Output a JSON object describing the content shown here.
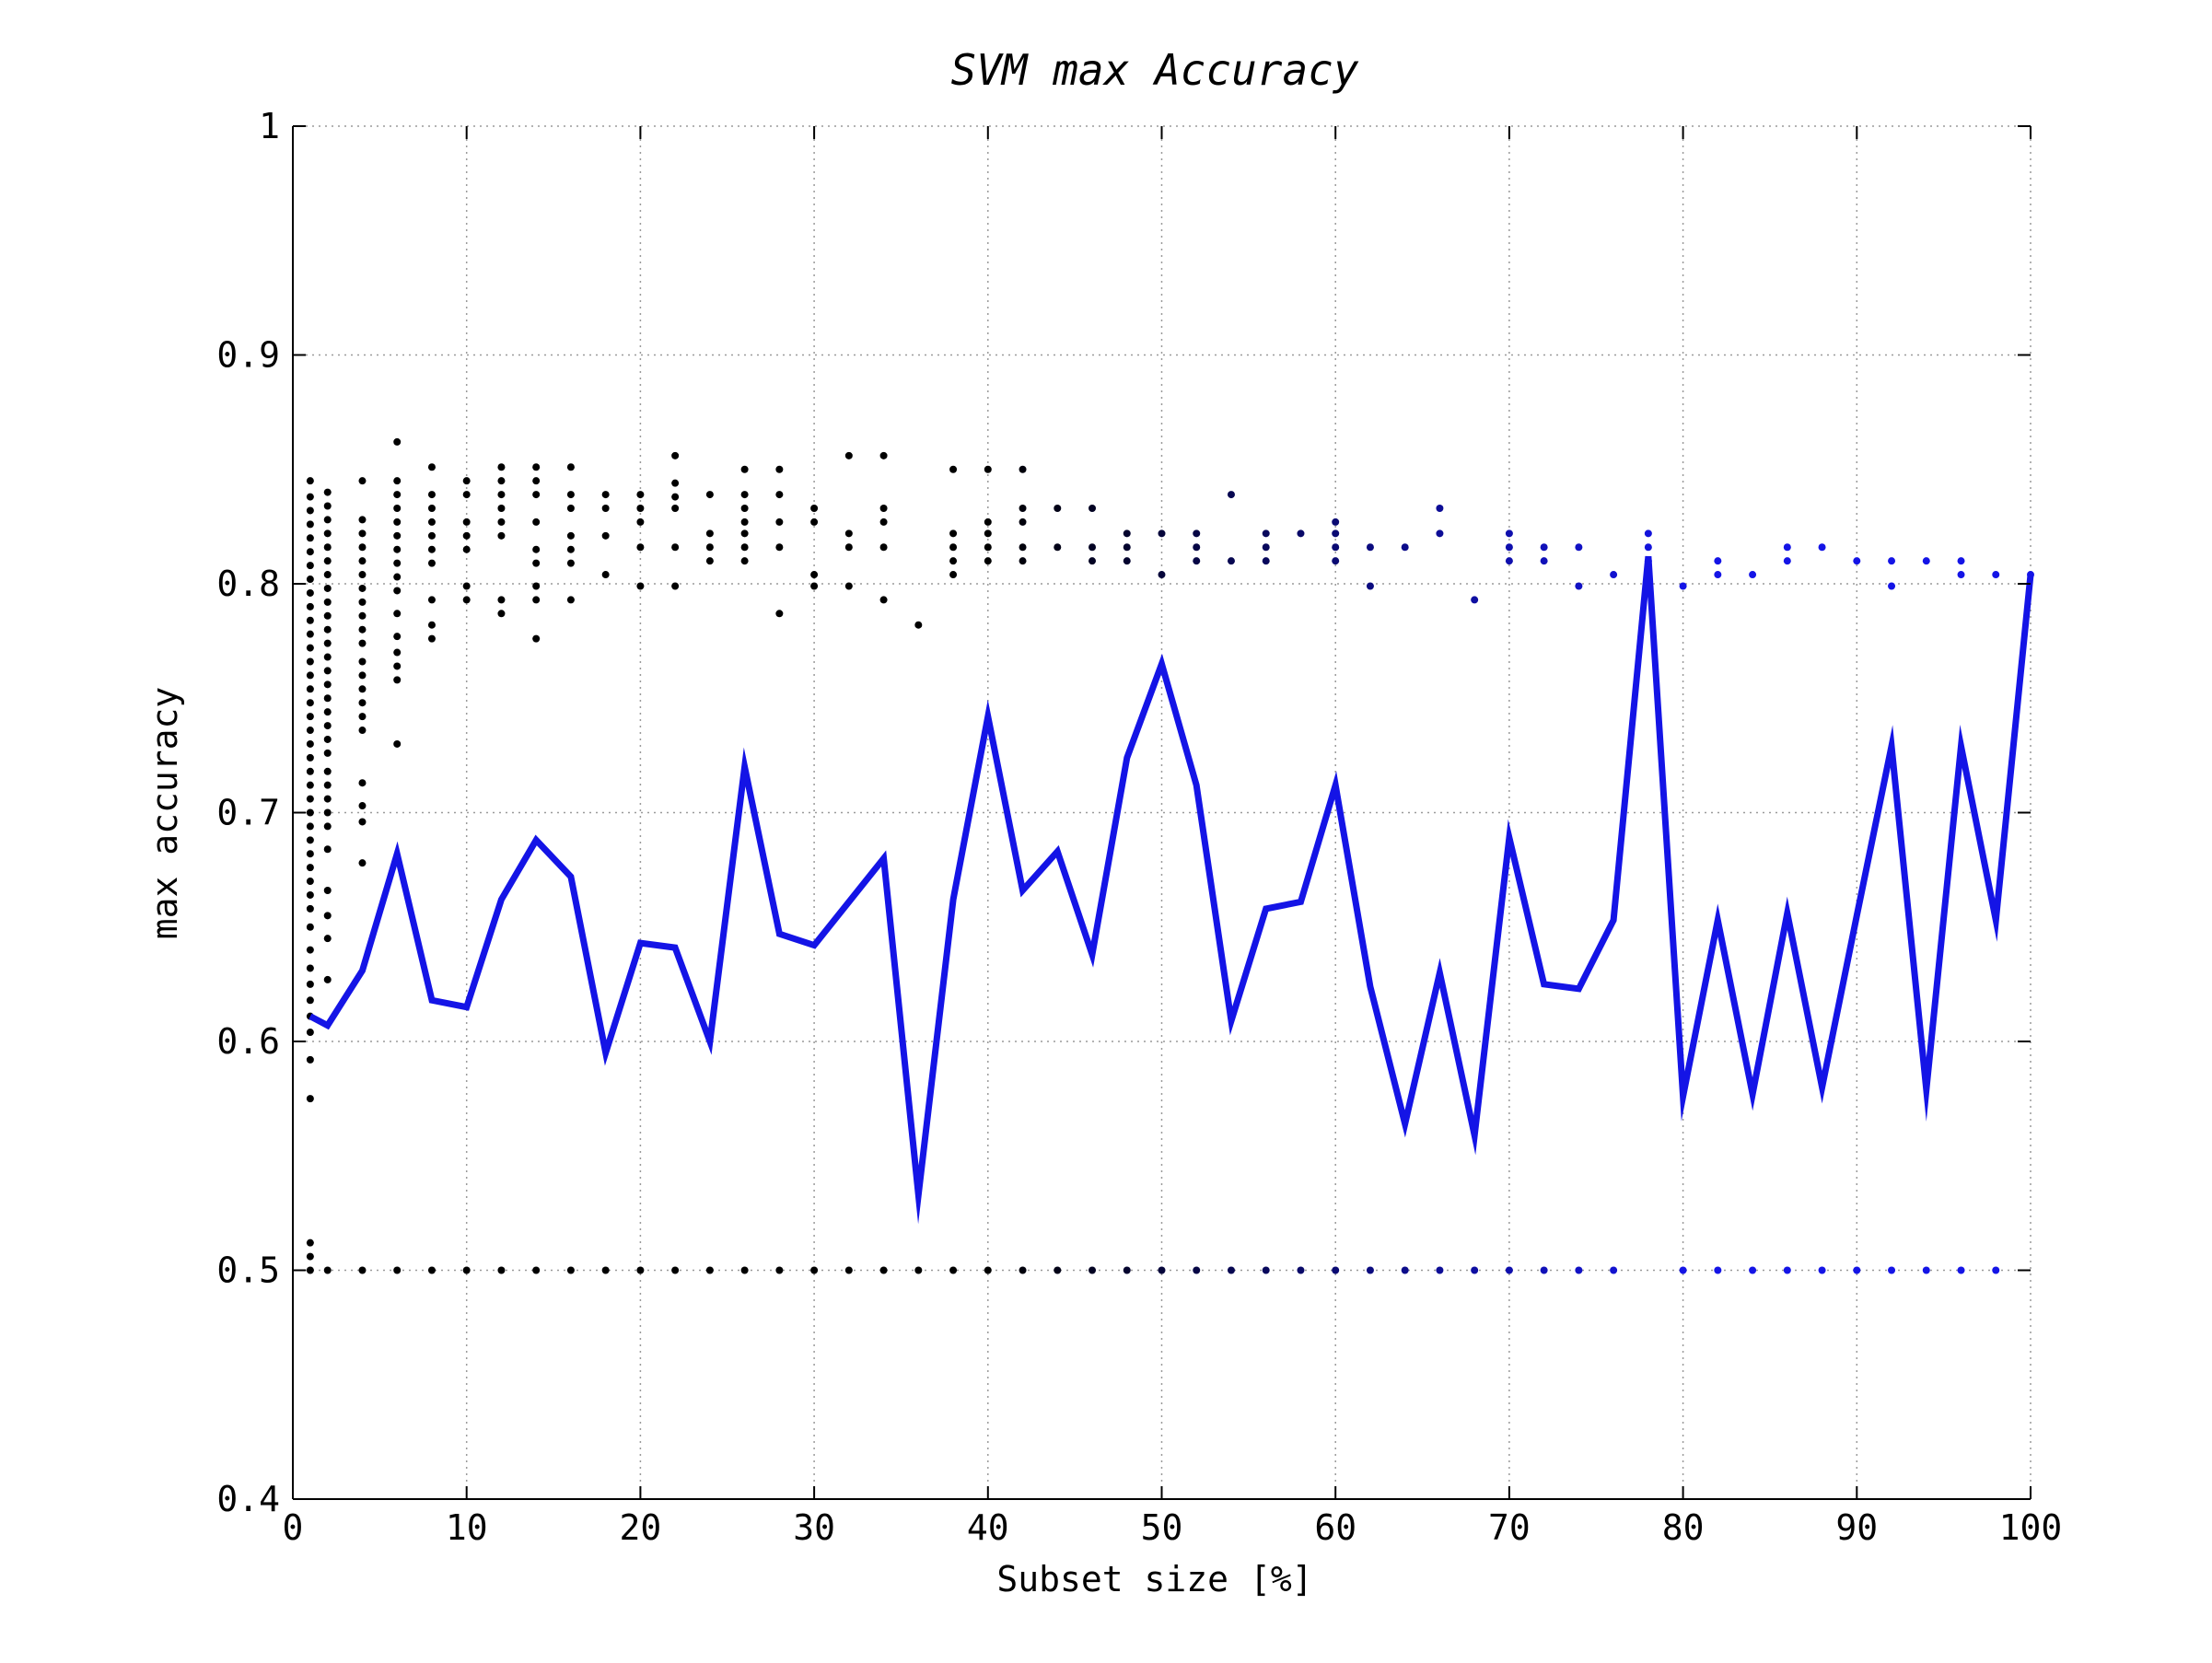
{
  "chart_data": {
    "type": "line",
    "title": "SVM max Accuracy",
    "xlabel": "Subset size [%]",
    "ylabel": "max accuracy",
    "xlim": [
      0,
      100
    ],
    "ylim": [
      0.4,
      1
    ],
    "xticks": [
      "0",
      "10",
      "20",
      "30",
      "40",
      "50",
      "60",
      "70",
      "80",
      "90",
      "100"
    ],
    "yticks": [
      "0.4",
      "0.5",
      "0.6",
      "0.7",
      "0.8",
      "0.9",
      "1"
    ],
    "grid": true,
    "colors": {
      "line": "#1414e6",
      "points_dark": "#000000",
      "points_blue": "#1414e6"
    },
    "series": [
      {
        "x": [
          1,
          2,
          4,
          6,
          8,
          10,
          12,
          14,
          16,
          18,
          20,
          22,
          24,
          26,
          28,
          30,
          34,
          36,
          38,
          40,
          42,
          44,
          46,
          48,
          50,
          52,
          54,
          56,
          58,
          60,
          62,
          64,
          66,
          68,
          70,
          72,
          74,
          76,
          78,
          80,
          82,
          84,
          86,
          88,
          90,
          92,
          94,
          96,
          98,
          100
        ],
        "y": [
          0.611,
          0.607,
          0.631,
          0.682,
          0.618,
          0.615,
          0.662,
          0.688,
          0.672,
          0.595,
          0.643,
          0.641,
          0.6,
          0.72,
          0.647,
          0.642,
          0.68,
          0.533,
          0.662,
          0.742,
          0.666,
          0.683,
          0.638,
          0.724,
          0.765,
          0.712,
          0.609,
          0.658,
          0.661,
          0.712,
          0.624,
          0.564,
          0.63,
          0.559,
          0.689,
          0.625,
          0.623,
          0.653,
          0.812,
          0.576,
          0.653,
          0.577,
          0.656,
          0.58,
          0.655,
          0.729,
          0.579,
          0.729,
          0.653,
          0.804
        ]
      }
    ],
    "scatter_points": [
      [
        1,
        0.845
      ],
      [
        1,
        0.838
      ],
      [
        1,
        0.832
      ],
      [
        1,
        0.826
      ],
      [
        1,
        0.82
      ],
      [
        1,
        0.814
      ],
      [
        1,
        0.808
      ],
      [
        1,
        0.802
      ],
      [
        1,
        0.796
      ],
      [
        1,
        0.79
      ],
      [
        1,
        0.784
      ],
      [
        1,
        0.778
      ],
      [
        1,
        0.772
      ],
      [
        1,
        0.766
      ],
      [
        1,
        0.76
      ],
      [
        1,
        0.754
      ],
      [
        1,
        0.748
      ],
      [
        1,
        0.742
      ],
      [
        1,
        0.736
      ],
      [
        1,
        0.73
      ],
      [
        1,
        0.724
      ],
      [
        1,
        0.718
      ],
      [
        1,
        0.712
      ],
      [
        1,
        0.706
      ],
      [
        1,
        0.7
      ],
      [
        1,
        0.694
      ],
      [
        1,
        0.688
      ],
      [
        1,
        0.682
      ],
      [
        1,
        0.676
      ],
      [
        1,
        0.67
      ],
      [
        1,
        0.664
      ],
      [
        1,
        0.658
      ],
      [
        1,
        0.65
      ],
      [
        1,
        0.64
      ],
      [
        1,
        0.632
      ],
      [
        1,
        0.625
      ],
      [
        1,
        0.618
      ],
      [
        1,
        0.611
      ],
      [
        1,
        0.604
      ],
      [
        1,
        0.592
      ],
      [
        1,
        0.575
      ],
      [
        1,
        0.512
      ],
      [
        1,
        0.506
      ],
      [
        1,
        0.5
      ],
      [
        2,
        0.84
      ],
      [
        2,
        0.834
      ],
      [
        2,
        0.828
      ],
      [
        2,
        0.822
      ],
      [
        2,
        0.816
      ],
      [
        2,
        0.81
      ],
      [
        2,
        0.804
      ],
      [
        2,
        0.798
      ],
      [
        2,
        0.792
      ],
      [
        2,
        0.786
      ],
      [
        2,
        0.78
      ],
      [
        2,
        0.774
      ],
      [
        2,
        0.768
      ],
      [
        2,
        0.762
      ],
      [
        2,
        0.756
      ],
      [
        2,
        0.75
      ],
      [
        2,
        0.744
      ],
      [
        2,
        0.738
      ],
      [
        2,
        0.732
      ],
      [
        2,
        0.726
      ],
      [
        2,
        0.718
      ],
      [
        2,
        0.712
      ],
      [
        2,
        0.706
      ],
      [
        2,
        0.7
      ],
      [
        2,
        0.694
      ],
      [
        2,
        0.684
      ],
      [
        2,
        0.666
      ],
      [
        2,
        0.655
      ],
      [
        2,
        0.645
      ],
      [
        2,
        0.627
      ],
      [
        2,
        0.5
      ],
      [
        4,
        0.845
      ],
      [
        4,
        0.828
      ],
      [
        4,
        0.822
      ],
      [
        4,
        0.816
      ],
      [
        4,
        0.81
      ],
      [
        4,
        0.804
      ],
      [
        4,
        0.798
      ],
      [
        4,
        0.792
      ],
      [
        4,
        0.786
      ],
      [
        4,
        0.78
      ],
      [
        4,
        0.774
      ],
      [
        4,
        0.766
      ],
      [
        4,
        0.76
      ],
      [
        4,
        0.754
      ],
      [
        4,
        0.748
      ],
      [
        4,
        0.742
      ],
      [
        4,
        0.736
      ],
      [
        4,
        0.713
      ],
      [
        4,
        0.703
      ],
      [
        4,
        0.696
      ],
      [
        4,
        0.678
      ],
      [
        4,
        0.5
      ],
      [
        6,
        0.862
      ],
      [
        6,
        0.845
      ],
      [
        6,
        0.839
      ],
      [
        6,
        0.833
      ],
      [
        6,
        0.827
      ],
      [
        6,
        0.821
      ],
      [
        6,
        0.815
      ],
      [
        6,
        0.809
      ],
      [
        6,
        0.803
      ],
      [
        6,
        0.797
      ],
      [
        6,
        0.787
      ],
      [
        6,
        0.777
      ],
      [
        6,
        0.77
      ],
      [
        6,
        0.764
      ],
      [
        6,
        0.758
      ],
      [
        6,
        0.73
      ],
      [
        6,
        0.5
      ],
      [
        8,
        0.851
      ],
      [
        8,
        0.839
      ],
      [
        8,
        0.833
      ],
      [
        8,
        0.827
      ],
      [
        8,
        0.821
      ],
      [
        8,
        0.815
      ],
      [
        8,
        0.809
      ],
      [
        8,
        0.793
      ],
      [
        8,
        0.782
      ],
      [
        8,
        0.776
      ],
      [
        8,
        0.5
      ],
      [
        10,
        0.845
      ],
      [
        10,
        0.839
      ],
      [
        10,
        0.827
      ],
      [
        10,
        0.821
      ],
      [
        10,
        0.815
      ],
      [
        10,
        0.799
      ],
      [
        10,
        0.793
      ],
      [
        10,
        0.5
      ],
      [
        12,
        0.851
      ],
      [
        12,
        0.845
      ],
      [
        12,
        0.839
      ],
      [
        12,
        0.833
      ],
      [
        12,
        0.827
      ],
      [
        12,
        0.821
      ],
      [
        12,
        0.793
      ],
      [
        12,
        0.787
      ],
      [
        12,
        0.5
      ],
      [
        14,
        0.851
      ],
      [
        14,
        0.845
      ],
      [
        14,
        0.839
      ],
      [
        14,
        0.827
      ],
      [
        14,
        0.815
      ],
      [
        14,
        0.809
      ],
      [
        14,
        0.799
      ],
      [
        14,
        0.793
      ],
      [
        14,
        0.776
      ],
      [
        14,
        0.5
      ],
      [
        16,
        0.851
      ],
      [
        16,
        0.839
      ],
      [
        16,
        0.833
      ],
      [
        16,
        0.821
      ],
      [
        16,
        0.815
      ],
      [
        16,
        0.809
      ],
      [
        16,
        0.793
      ],
      [
        16,
        0.5
      ],
      [
        18,
        0.839
      ],
      [
        18,
        0.833
      ],
      [
        18,
        0.821
      ],
      [
        18,
        0.804
      ],
      [
        18,
        0.5
      ],
      [
        20,
        0.839
      ],
      [
        20,
        0.833
      ],
      [
        20,
        0.827
      ],
      [
        20,
        0.816
      ],
      [
        20,
        0.799
      ],
      [
        20,
        0.5
      ],
      [
        22,
        0.856
      ],
      [
        22,
        0.844
      ],
      [
        22,
        0.838
      ],
      [
        22,
        0.833
      ],
      [
        22,
        0.816
      ],
      [
        22,
        0.799
      ],
      [
        22,
        0.5
      ],
      [
        24,
        0.839
      ],
      [
        24,
        0.822
      ],
      [
        24,
        0.816
      ],
      [
        24,
        0.81
      ],
      [
        24,
        0.5
      ],
      [
        26,
        0.85
      ],
      [
        26,
        0.839
      ],
      [
        26,
        0.833
      ],
      [
        26,
        0.827
      ],
      [
        26,
        0.822
      ],
      [
        26,
        0.816
      ],
      [
        26,
        0.81
      ],
      [
        26,
        0.5
      ],
      [
        28,
        0.85
      ],
      [
        28,
        0.839
      ],
      [
        28,
        0.827
      ],
      [
        28,
        0.816
      ],
      [
        28,
        0.787
      ],
      [
        28,
        0.5
      ],
      [
        30,
        0.833
      ],
      [
        30,
        0.827
      ],
      [
        30,
        0.804
      ],
      [
        30,
        0.799
      ],
      [
        30,
        0.5
      ],
      [
        32,
        0.856
      ],
      [
        32,
        0.822
      ],
      [
        32,
        0.816
      ],
      [
        32,
        0.799
      ],
      [
        32,
        0.5
      ],
      [
        34,
        0.856
      ],
      [
        34,
        0.833
      ],
      [
        34,
        0.827
      ],
      [
        34,
        0.816
      ],
      [
        34,
        0.793
      ],
      [
        34,
        0.5
      ],
      [
        36,
        0.782
      ],
      [
        36,
        0.5
      ],
      [
        38,
        0.85
      ],
      [
        38,
        0.822
      ],
      [
        38,
        0.816
      ],
      [
        38,
        0.81
      ],
      [
        38,
        0.804
      ],
      [
        38,
        0.5
      ],
      [
        40,
        0.85
      ],
      [
        40,
        0.827
      ],
      [
        40,
        0.822
      ],
      [
        40,
        0.816
      ],
      [
        40,
        0.81
      ],
      [
        40,
        0.5
      ],
      [
        42,
        0.85
      ],
      [
        42,
        0.833
      ],
      [
        42,
        0.827
      ],
      [
        42,
        0.816
      ],
      [
        42,
        0.81
      ],
      [
        42,
        0.5
      ],
      [
        44,
        0.833
      ],
      [
        44,
        0.816
      ],
      [
        44,
        0.5
      ],
      [
        46,
        0.833
      ],
      [
        46,
        0.816
      ],
      [
        46,
        0.81
      ],
      [
        46,
        0.5
      ],
      [
        48,
        0.822
      ],
      [
        48,
        0.816
      ],
      [
        48,
        0.81
      ],
      [
        48,
        0.5
      ],
      [
        50,
        0.822
      ],
      [
        50,
        0.804
      ],
      [
        50,
        0.5
      ],
      [
        52,
        0.822
      ],
      [
        52,
        0.816
      ],
      [
        52,
        0.81
      ],
      [
        52,
        0.5
      ],
      [
        54,
        0.839
      ],
      [
        54,
        0.81
      ],
      [
        54,
        0.5
      ],
      [
        56,
        0.822
      ],
      [
        56,
        0.816
      ],
      [
        56,
        0.81
      ],
      [
        56,
        0.5
      ],
      [
        58,
        0.822
      ],
      [
        58,
        0.5
      ],
      [
        60,
        0.827
      ],
      [
        60,
        0.822
      ],
      [
        60,
        0.816
      ],
      [
        60,
        0.81
      ],
      [
        60,
        0.5
      ],
      [
        62,
        0.816
      ],
      [
        62,
        0.799
      ],
      [
        62,
        0.5
      ],
      [
        64,
        0.816
      ],
      [
        64,
        0.5
      ],
      [
        66,
        0.833
      ],
      [
        66,
        0.822
      ],
      [
        66,
        0.5
      ],
      [
        68,
        0.793
      ],
      [
        68,
        0.5
      ],
      [
        70,
        0.822
      ],
      [
        70,
        0.816
      ],
      [
        70,
        0.81
      ],
      [
        70,
        0.5
      ],
      [
        72,
        0.816
      ],
      [
        72,
        0.81
      ],
      [
        72,
        0.5
      ],
      [
        74,
        0.816
      ],
      [
        74,
        0.799
      ],
      [
        74,
        0.5
      ],
      [
        76,
        0.804
      ],
      [
        76,
        0.5
      ],
      [
        78,
        0.822
      ],
      [
        78,
        0.816
      ],
      [
        78,
        0.81
      ],
      [
        80,
        0.799
      ],
      [
        80,
        0.5
      ],
      [
        82,
        0.81
      ],
      [
        82,
        0.804
      ],
      [
        82,
        0.5
      ],
      [
        84,
        0.804
      ],
      [
        84,
        0.5
      ],
      [
        86,
        0.816
      ],
      [
        86,
        0.81
      ],
      [
        86,
        0.5
      ],
      [
        88,
        0.816
      ],
      [
        88,
        0.5
      ],
      [
        90,
        0.81
      ],
      [
        90,
        0.5
      ],
      [
        92,
        0.81
      ],
      [
        92,
        0.799
      ],
      [
        92,
        0.5
      ],
      [
        94,
        0.81
      ],
      [
        94,
        0.5
      ],
      [
        96,
        0.81
      ],
      [
        96,
        0.804
      ],
      [
        96,
        0.5
      ],
      [
        98,
        0.804
      ],
      [
        98,
        0.5
      ],
      [
        100,
        0.804
      ]
    ]
  }
}
